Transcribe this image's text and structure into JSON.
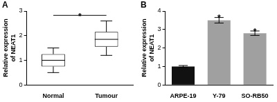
{
  "chart_data": [
    {
      "type": "box",
      "title": "A",
      "ylabel": [
        "Relative expression",
        "of NEAT1"
      ],
      "categories": [
        "Normal",
        "Tumour"
      ],
      "values": [
        {
          "min": 0.5,
          "q1": 0.75,
          "median": 1.0,
          "q3": 1.25,
          "max": 1.5
        },
        {
          "min": 1.2,
          "q1": 1.55,
          "median": 1.85,
          "q3": 2.15,
          "max": 2.6
        }
      ],
      "color": "#ffffff",
      "ylim": [
        0,
        3
      ],
      "yticks": [
        0,
        1,
        2,
        3
      ],
      "grid": false,
      "annotations": [
        {
          "text": "*",
          "from": "Normal",
          "to": "Tumour"
        }
      ]
    },
    {
      "type": "bar",
      "title": "B",
      "ylabel": [
        "Relative expression",
        "of NEAT1"
      ],
      "categories": [
        "ARPE-19",
        "Y-79",
        "SO-RB50"
      ],
      "values": [
        1.0,
        3.5,
        2.8
      ],
      "errors": [
        0.05,
        0.15,
        0.12
      ],
      "colors": [
        "#111111",
        "#a0a0a0",
        "#a0a0a0"
      ],
      "ylim": [
        0,
        4
      ],
      "yticks": [
        0,
        1,
        2,
        3,
        4
      ],
      "grid": false,
      "annotations": [
        {
          "text": "*",
          "category": "Y-79"
        },
        {
          "text": "*",
          "category": "SO-RB50"
        }
      ]
    }
  ]
}
